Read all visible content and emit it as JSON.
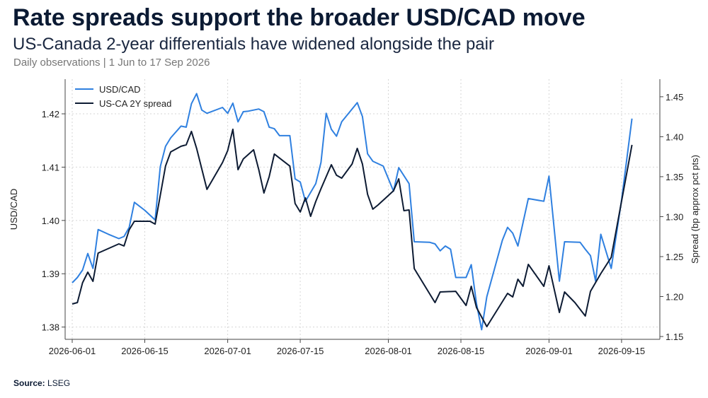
{
  "chart_data": {
    "type": "line",
    "title": "Rate spreads support the broader USD/CAD move",
    "subtitle": "US-Canada 2-year differentials have widened alongside the pair",
    "note": "Daily observations | 1 Jun to 17 Sep 2026",
    "source_label": "Source:",
    "source": "LSEG",
    "ylabel": "USD/CAD",
    "y2label": "Spread (bp approx pct pts)",
    "grid": true,
    "legend": "upper left",
    "xticks": [
      "2026-06-01",
      "2026-06-15",
      "2026-07-01",
      "2026-07-15",
      "2026-08-01",
      "2026-08-15",
      "2026-09-01",
      "2026-09-15"
    ],
    "ylim": [
      1.3777,
      1.4265
    ],
    "yticks": [
      1.38,
      1.39,
      {
        "value": 1.4,
        "label": "1.40"
      },
      1.41,
      1.42
    ],
    "y2lim": [
      1.1465,
      1.472
    ],
    "y2ticks": [
      1.15,
      {
        "value": 1.2,
        "label": "1.20"
      },
      1.25,
      {
        "value": 1.3,
        "label": "1.30"
      },
      1.35,
      {
        "value": 1.4,
        "label": "1.40"
      },
      1.45
    ],
    "series": [
      {
        "name": "USD/CAD",
        "color": "#2f80e0",
        "axis": "y",
        "x": [
          "2026-06-01",
          "2026-06-02",
          "2026-06-03",
          "2026-06-04",
          "2026-06-05",
          "2026-06-06",
          "2026-06-08",
          "2026-06-10",
          "2026-06-11",
          "2026-06-12",
          "2026-06-13",
          "2026-06-15",
          "2026-06-17",
          "2026-06-18",
          "2026-06-19",
          "2026-06-20",
          "2026-06-22",
          "2026-06-23",
          "2026-06-24",
          "2026-06-25",
          "2026-06-26",
          "2026-06-27",
          "2026-06-30",
          "2026-07-01",
          "2026-07-02",
          "2026-07-03",
          "2026-07-04",
          "2026-07-05",
          "2026-07-07",
          "2026-07-08",
          "2026-07-09",
          "2026-07-10",
          "2026-07-11",
          "2026-07-13",
          "2026-07-14",
          "2026-07-15",
          "2026-07-16",
          "2026-07-18",
          "2026-07-19",
          "2026-07-20",
          "2026-07-21",
          "2026-07-22",
          "2026-07-23",
          "2026-07-26",
          "2026-07-27",
          "2026-07-28",
          "2026-07-29",
          "2026-07-31",
          "2026-08-02",
          "2026-08-03",
          "2026-08-05",
          "2026-08-06",
          "2026-08-09",
          "2026-08-10",
          "2026-08-11",
          "2026-08-12",
          "2026-08-13",
          "2026-08-14",
          "2026-08-16",
          "2026-08-17",
          "2026-08-18",
          "2026-08-19",
          "2026-08-20",
          "2026-08-23",
          "2026-08-24",
          "2026-08-25",
          "2026-08-26",
          "2026-08-28",
          "2026-08-31",
          "2026-09-01",
          "2026-09-03",
          "2026-09-04",
          "2026-09-07",
          "2026-09-08",
          "2026-09-09",
          "2026-09-10",
          "2026-09-11",
          "2026-09-13",
          "2026-09-15",
          "2026-09-17"
        ],
        "values": [
          1.3883,
          1.3893,
          1.3907,
          1.3938,
          1.391,
          1.3983,
          1.3974,
          1.3966,
          1.397,
          1.3987,
          1.4034,
          1.4019,
          1.4001,
          1.4101,
          1.4139,
          1.4155,
          1.4177,
          1.4175,
          1.4219,
          1.4238,
          1.4207,
          1.4201,
          1.4212,
          1.4201,
          1.422,
          1.4185,
          1.4204,
          1.4205,
          1.4209,
          1.4204,
          1.4175,
          1.4172,
          1.4159,
          1.4159,
          1.4078,
          1.4072,
          1.4036,
          1.4069,
          1.4109,
          1.4201,
          1.4171,
          1.4158,
          1.4185,
          1.4221,
          1.4195,
          1.4125,
          1.4111,
          1.4102,
          1.4055,
          1.4099,
          1.4069,
          1.396,
          1.3959,
          1.3956,
          1.3943,
          1.3952,
          1.3946,
          1.3893,
          1.3893,
          1.3917,
          1.3844,
          1.3795,
          1.3857,
          1.3963,
          1.3987,
          1.3976,
          1.3952,
          1.4041,
          1.4036,
          1.4083,
          1.3886,
          1.396,
          1.3959,
          1.3946,
          1.3934,
          1.3886,
          1.3974,
          1.391,
          1.4038,
          1.4191
        ]
      },
      {
        "name": "US-CA 2Y spread",
        "color": "#0d1b33",
        "axis": "y2",
        "x": [
          "2026-06-01",
          "2026-06-02",
          "2026-06-03",
          "2026-06-04",
          "2026-06-05",
          "2026-06-06",
          "2026-06-10",
          "2026-06-11",
          "2026-06-12",
          "2026-06-13",
          "2026-06-16",
          "2026-06-17",
          "2026-06-19",
          "2026-06-20",
          "2026-06-22",
          "2026-06-23",
          "2026-06-24",
          "2026-06-25",
          "2026-06-27",
          "2026-06-30",
          "2026-07-01",
          "2026-07-02",
          "2026-07-03",
          "2026-07-04",
          "2026-07-06",
          "2026-07-07",
          "2026-07-08",
          "2026-07-09",
          "2026-07-10",
          "2026-07-13",
          "2026-07-14",
          "2026-07-15",
          "2026-07-16",
          "2026-07-17",
          "2026-07-18",
          "2026-07-19",
          "2026-07-21",
          "2026-07-22",
          "2026-07-23",
          "2026-07-25",
          "2026-07-26",
          "2026-07-27",
          "2026-07-28",
          "2026-07-29",
          "2026-07-30",
          "2026-08-02",
          "2026-08-03",
          "2026-08-04",
          "2026-08-05",
          "2026-08-06",
          "2026-08-10",
          "2026-08-11",
          "2026-08-14",
          "2026-08-16",
          "2026-08-17",
          "2026-08-18",
          "2026-08-20",
          "2026-08-24",
          "2026-08-25",
          "2026-08-26",
          "2026-08-27",
          "2026-08-28",
          "2026-08-31",
          "2026-09-01",
          "2026-09-03",
          "2026-09-04",
          "2026-09-06",
          "2026-09-08",
          "2026-09-09",
          "2026-09-11",
          "2026-09-13",
          "2026-09-17"
        ],
        "values": [
          1.1907,
          1.1925,
          1.2173,
          1.2305,
          1.219,
          1.2544,
          1.2659,
          1.2633,
          1.2836,
          1.2942,
          1.2942,
          1.2907,
          1.3633,
          1.381,
          1.3881,
          1.3898,
          1.4066,
          1.3854,
          1.3341,
          1.3677,
          1.3827,
          1.4093,
          1.3588,
          1.3721,
          1.3836,
          1.3588,
          1.3296,
          1.35,
          1.3783,
          1.3633,
          1.3164,
          1.3058,
          1.3235,
          1.3004,
          1.319,
          1.335,
          1.365,
          1.3518,
          1.3482,
          1.3659,
          1.3854,
          1.3659,
          1.3279,
          1.3093,
          1.3146,
          1.3323,
          1.3473,
          1.3075,
          1.3084,
          1.235,
          1.1925,
          1.2058,
          1.2066,
          1.1889,
          1.2128,
          1.1863,
          1.1624,
          1.204,
          1.1996,
          1.2217,
          1.2128,
          1.2403,
          1.2128,
          1.2385,
          1.1801,
          1.2058,
          1.1925,
          1.1757,
          1.2066,
          1.2288,
          1.2491,
          1.3898
        ]
      }
    ]
  }
}
